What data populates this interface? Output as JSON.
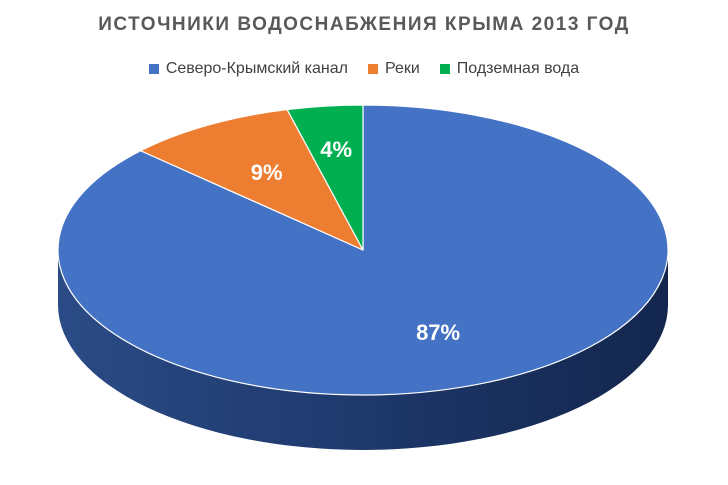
{
  "chart_data": {
    "type": "pie",
    "title": "ИСТОЧНИКИ ВОДОСНАБЖЕНИЯ КРЫМА 2013 ГОД",
    "legend_position": "top",
    "categories": [
      "Северо-Крымский канал",
      "Реки",
      "Подземная вода"
    ],
    "values": [
      87,
      9,
      4
    ],
    "data_labels": [
      "87%",
      "9%",
      "4%"
    ],
    "colors": [
      "#4472C4",
      "#ED7D31",
      "#00B050"
    ]
  }
}
